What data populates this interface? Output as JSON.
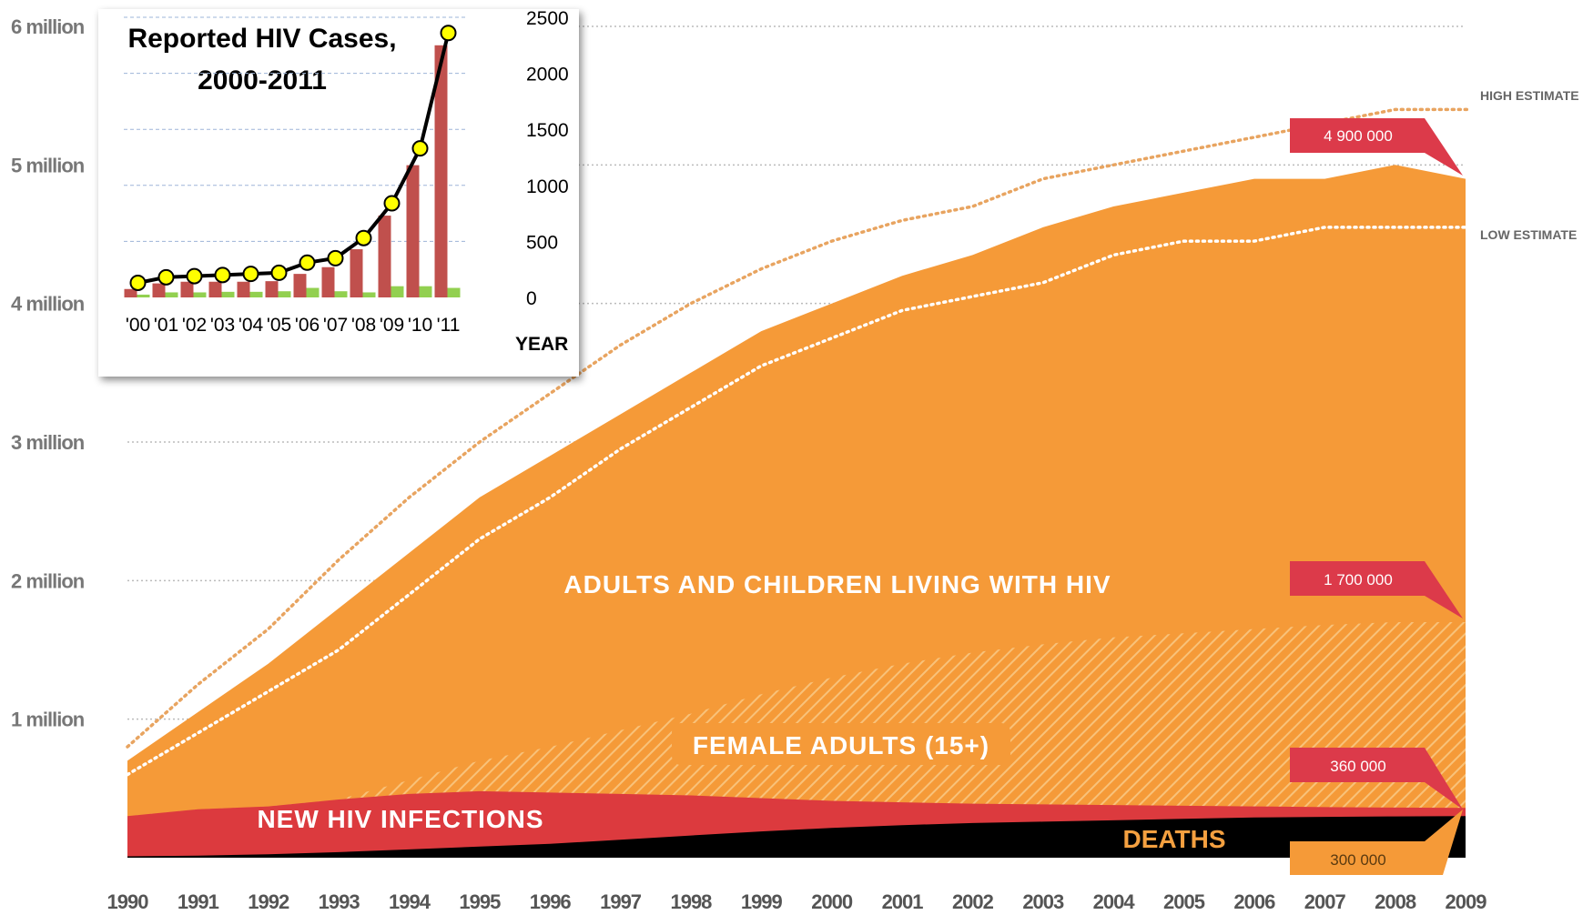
{
  "chart_data": [
    {
      "type": "area",
      "x": [
        "1990",
        "1991",
        "1992",
        "1993",
        "1994",
        "1995",
        "1996",
        "1997",
        "1998",
        "1999",
        "2000",
        "2001",
        "2002",
        "2003",
        "2004",
        "2005",
        "2006",
        "2007",
        "2008",
        "2009"
      ],
      "y_ticks": [
        "1 million",
        "2 million",
        "3 million",
        "4 million",
        "5 million",
        "6 million"
      ],
      "ylim": [
        0,
        6000000
      ],
      "grid": "dotted horizontal",
      "series": [
        {
          "name": "ADULTS AND CHILDREN LIVING WITH HIV",
          "color": "#f59a38",
          "values": [
            700000,
            1050000,
            1400000,
            1800000,
            2200000,
            2600000,
            2900000,
            3200000,
            3500000,
            3800000,
            4000000,
            4200000,
            4350000,
            4550000,
            4700000,
            4800000,
            4900000,
            4900000,
            5000000,
            4900000
          ]
        },
        {
          "name": "FEMALE ADULTS (15+)",
          "color": "#f7b461",
          "pattern": "hatched",
          "values": [
            300000,
            330000,
            360000,
            420000,
            560000,
            700000,
            800000,
            920000,
            1040000,
            1180000,
            1300000,
            1400000,
            1480000,
            1540000,
            1590000,
            1620000,
            1650000,
            1680000,
            1700000,
            1700000
          ]
        },
        {
          "name": "NEW HIV INFECTIONS",
          "color": "#dc3a3e",
          "values": [
            300000,
            350000,
            370000,
            420000,
            460000,
            480000,
            470000,
            460000,
            450000,
            430000,
            410000,
            400000,
            390000,
            385000,
            380000,
            375000,
            370000,
            365000,
            362000,
            360000
          ]
        },
        {
          "name": "DEATHS",
          "color": "#000000",
          "values": [
            10000,
            15000,
            25000,
            40000,
            60000,
            80000,
            100000,
            130000,
            160000,
            190000,
            215000,
            235000,
            250000,
            260000,
            270000,
            280000,
            290000,
            295000,
            298000,
            300000
          ]
        },
        {
          "name": "HIGH ESTIMATE",
          "style": "dotted",
          "color": "#e8a460",
          "values": [
            800000,
            1250000,
            1650000,
            2150000,
            2600000,
            3000000,
            3350000,
            3700000,
            4000000,
            4250000,
            4450000,
            4600000,
            4700000,
            4900000,
            5000000,
            5100000,
            5200000,
            5300000,
            5400000,
            5400000
          ]
        },
        {
          "name": "LOW ESTIMATE",
          "style": "dotted",
          "color": "#ffffff",
          "values": [
            600000,
            900000,
            1200000,
            1500000,
            1900000,
            2300000,
            2600000,
            2950000,
            3250000,
            3550000,
            3750000,
            3950000,
            4050000,
            4150000,
            4350000,
            4450000,
            4450000,
            4550000,
            4550000,
            4550000
          ]
        }
      ],
      "annotations": [
        {
          "text": "4 900 000",
          "y": 4900000
        },
        {
          "text": "1 700 000",
          "y": 1700000
        },
        {
          "text": "360 000",
          "y": 360000
        },
        {
          "text": "300 000",
          "y": 300000
        }
      ],
      "labels": {
        "living": "ADULTS AND CHILDREN LIVING WITH HIV",
        "female": "FEMALE ADULTS (15+)",
        "new": "NEW HIV INFECTIONS",
        "deaths": "DEATHS",
        "high": "HIGH ESTIMATE",
        "low": "LOW ESTIMATE"
      }
    },
    {
      "type": "bar",
      "title": "Reported HIV Cases, 2000-2011",
      "title_lines": [
        "Reported HIV Cases,",
        "2000-2011"
      ],
      "xlabel": "YEAR",
      "categories": [
        "'00",
        "'01",
        "'02",
        "'03",
        "'04",
        "'05",
        "'06",
        "'07",
        "'08",
        "'09",
        "'10",
        "'11"
      ],
      "y_ticks": [
        "0",
        "500",
        "1000",
        "1500",
        "2000",
        "2500"
      ],
      "ylim": [
        0,
        2500
      ],
      "y_axis_side": "right",
      "grid": "dashed horizontal",
      "series": [
        {
          "type": "bar",
          "color": "#c0504d",
          "values": [
            75,
            125,
            140,
            140,
            140,
            145,
            210,
            270,
            430,
            730,
            1180,
            2250
          ]
        },
        {
          "type": "bar",
          "color": "#92d050",
          "values": [
            25,
            45,
            45,
            50,
            50,
            55,
            85,
            55,
            45,
            100,
            100,
            85
          ]
        },
        {
          "type": "line",
          "color": "#000000",
          "marker_color": "#ffff00",
          "values": [
            130,
            180,
            190,
            200,
            210,
            220,
            310,
            350,
            530,
            840,
            1330,
            2360
          ]
        }
      ]
    }
  ]
}
